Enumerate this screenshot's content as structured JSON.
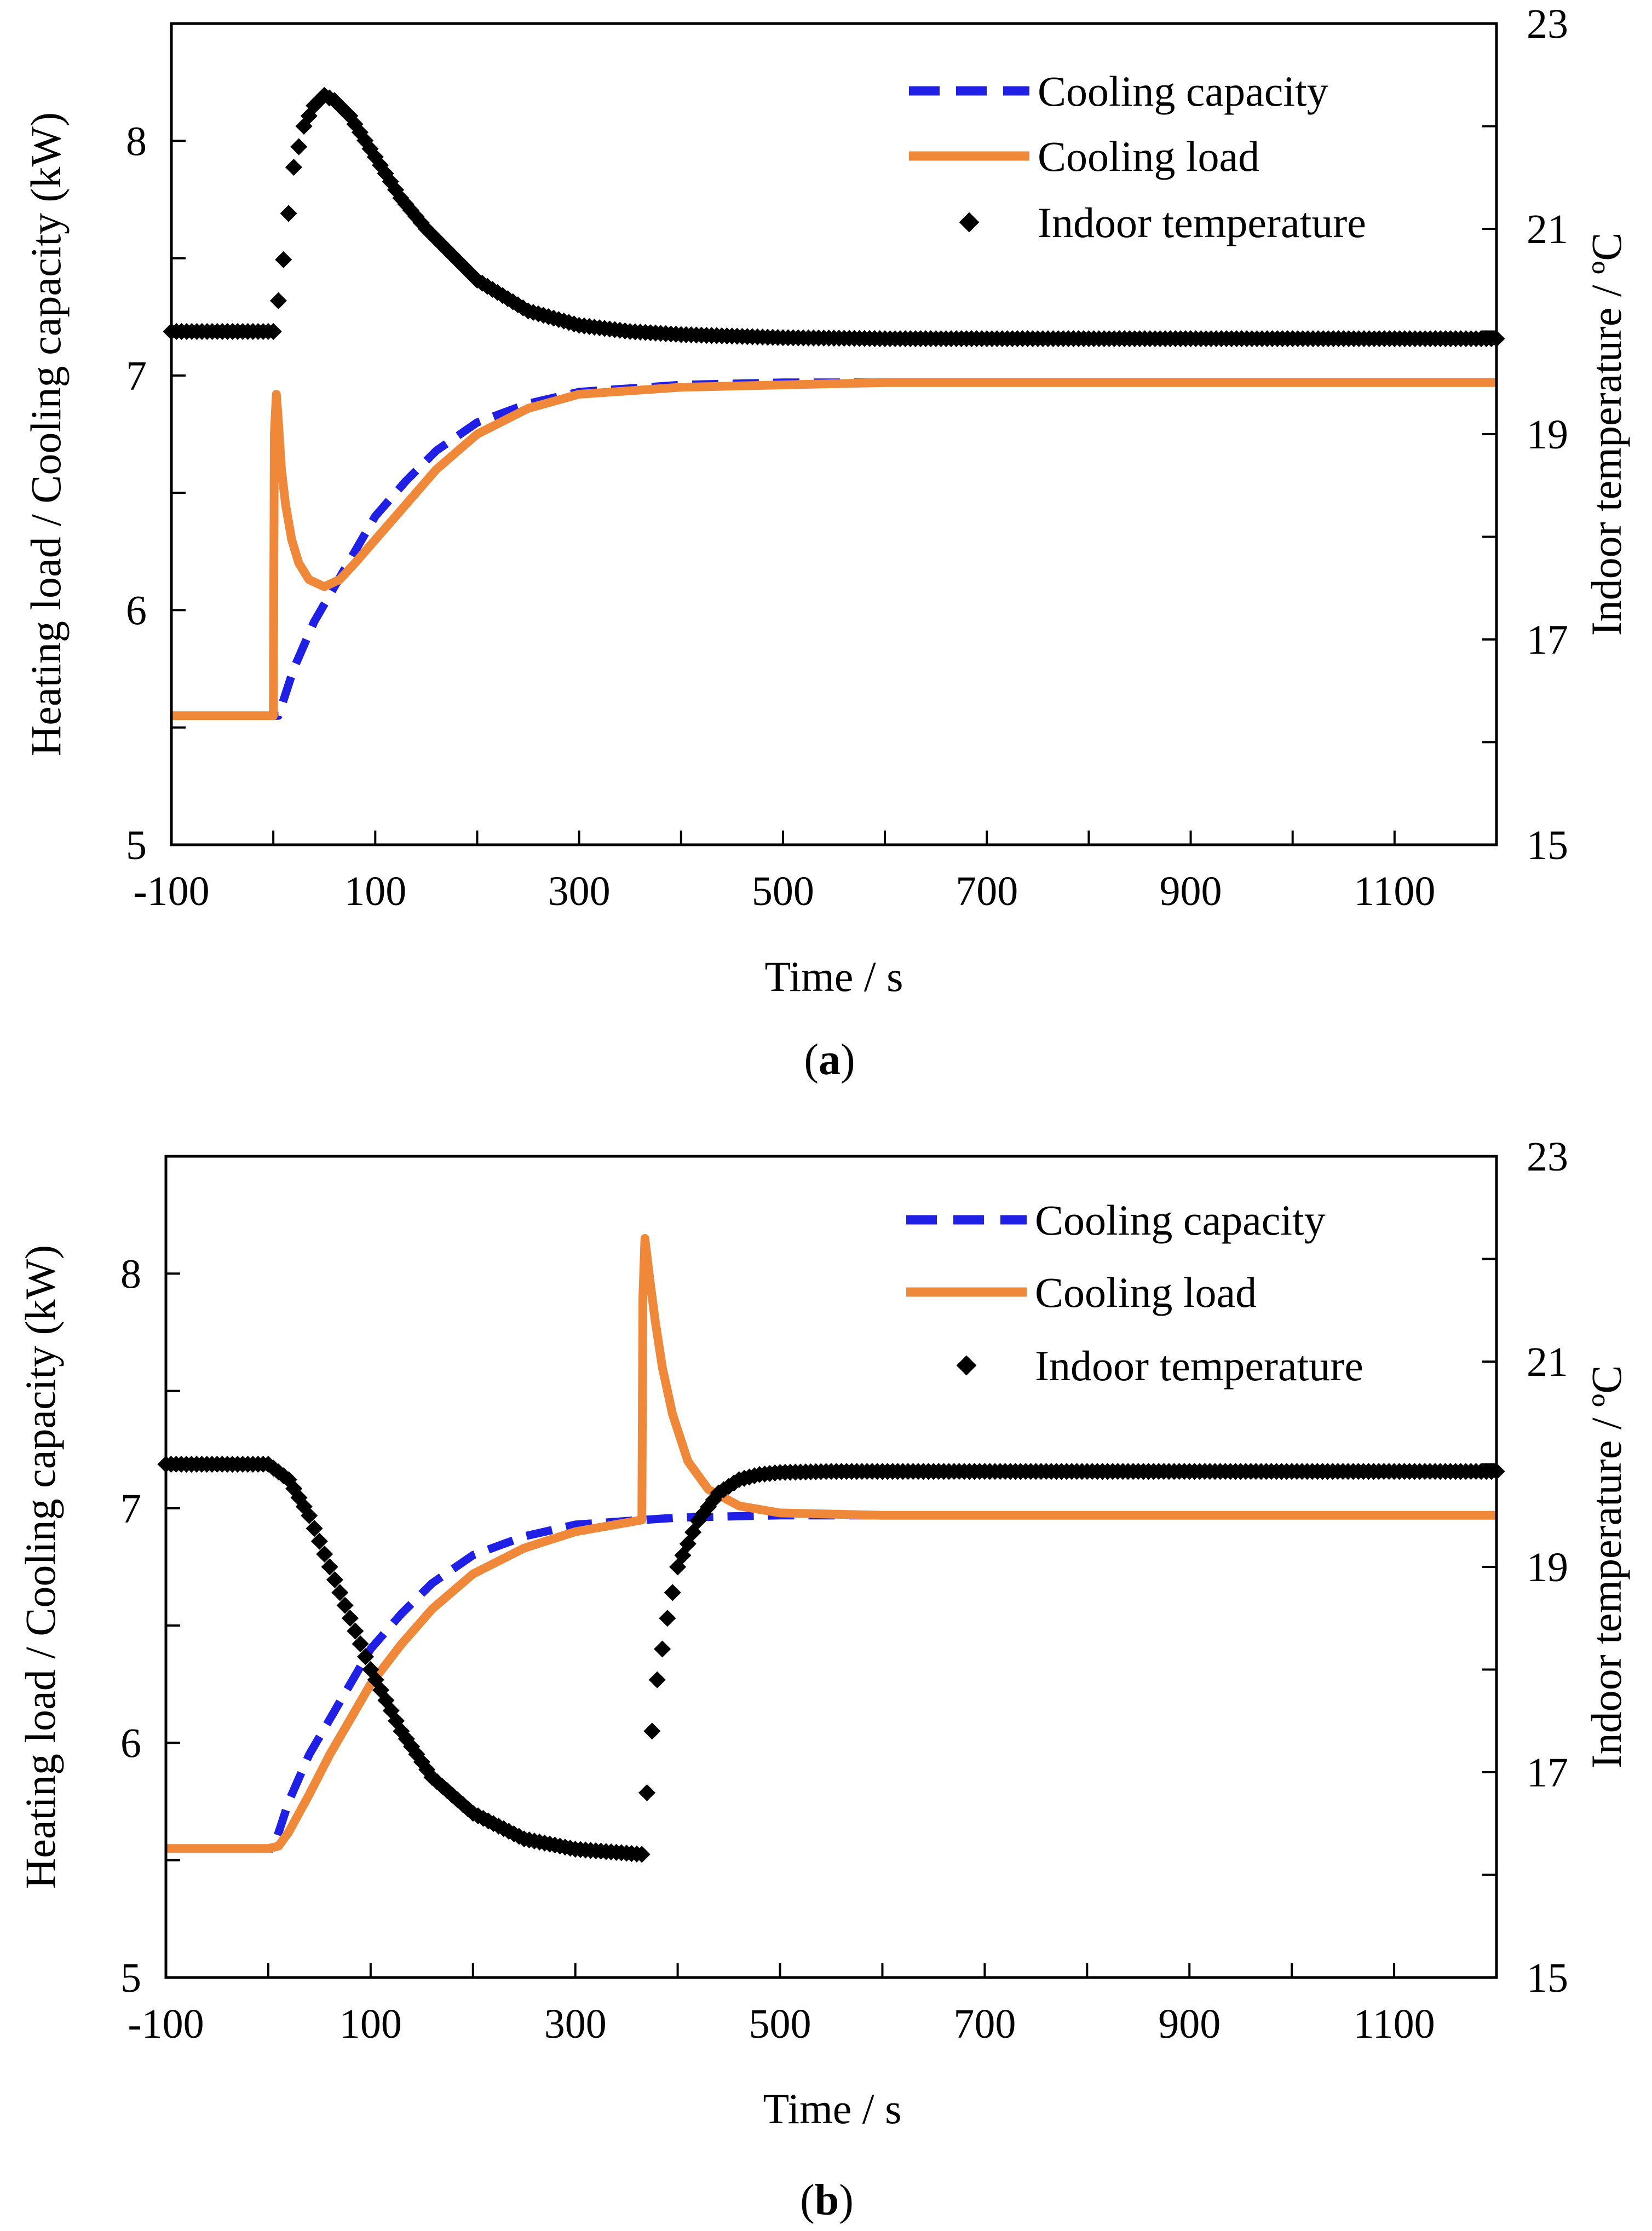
{
  "figure": {
    "colors": {
      "capacity": "#1f1fe6",
      "load": "#f0883a",
      "temperature": "#000000",
      "axis": "#000000"
    }
  },
  "chart_data": [
    {
      "type": "line",
      "panel": "a",
      "caption": {
        "open": "(",
        "letter": "a",
        "close": ")"
      },
      "xlabel": "Time / s",
      "ylabel_left": "Heating load / Cooling capacity (kW)",
      "ylabel_right": "Indoor temperature / ºC",
      "xlim": [
        -100,
        1200
      ],
      "ylim_left": [
        5,
        8.5
      ],
      "ylim_right": [
        15,
        23
      ],
      "x_ticks": [
        -100,
        100,
        300,
        500,
        700,
        900,
        1100
      ],
      "y_left_ticks": [
        5,
        6,
        7,
        8
      ],
      "y_right_ticks": [
        15,
        17,
        19,
        21,
        23
      ],
      "legend": [
        "Cooling capacity",
        "Cooling load",
        "Indoor temperature"
      ],
      "legend_position": "top-right",
      "series": [
        {
          "name": "Cooling capacity",
          "axis": "left",
          "style": "dashed",
          "x": [
            -100,
            0,
            5,
            20,
            40,
            60,
            80,
            100,
            130,
            160,
            200,
            250,
            300,
            400,
            500,
            600,
            800,
            1000,
            1200
          ],
          "y": [
            5.55,
            5.55,
            5.55,
            5.75,
            5.95,
            6.1,
            6.25,
            6.4,
            6.55,
            6.68,
            6.8,
            6.88,
            6.93,
            6.96,
            6.97,
            6.97,
            6.97,
            6.97,
            6.97
          ]
        },
        {
          "name": "Cooling load",
          "axis": "left",
          "style": "solid",
          "x": [
            -100,
            0,
            1,
            3,
            5,
            8,
            12,
            18,
            25,
            35,
            50,
            65,
            80,
            100,
            130,
            160,
            200,
            250,
            300,
            400,
            500,
            600,
            800,
            1000,
            1200
          ],
          "y": [
            5.55,
            5.55,
            6.75,
            6.92,
            6.8,
            6.6,
            6.45,
            6.3,
            6.2,
            6.13,
            6.1,
            6.13,
            6.2,
            6.3,
            6.45,
            6.6,
            6.75,
            6.86,
            6.92,
            6.95,
            6.96,
            6.97,
            6.97,
            6.97,
            6.97
          ]
        },
        {
          "name": "Indoor temperature",
          "axis": "right",
          "style": "markers",
          "x": [
            -100,
            0,
            5,
            10,
            20,
            30,
            40,
            50,
            60,
            75,
            100,
            125,
            150,
            175,
            200,
            250,
            300,
            350,
            400,
            500,
            600,
            800,
            1000,
            1200
          ],
          "y": [
            20.0,
            20.0,
            20.3,
            20.7,
            21.6,
            22.0,
            22.2,
            22.3,
            22.25,
            22.1,
            21.7,
            21.3,
            21.0,
            20.75,
            20.5,
            20.2,
            20.06,
            20.0,
            19.97,
            19.94,
            19.93,
            19.93,
            19.93,
            19.93
          ]
        }
      ]
    },
    {
      "type": "line",
      "panel": "b",
      "caption": {
        "open": "(",
        "letter": "b",
        "close": ")"
      },
      "xlabel": "Time / s",
      "ylabel_left": "Heating load / Cooling capacity (kW)",
      "ylabel_right": "Indoor temperature / ºC",
      "xlim": [
        -100,
        1200
      ],
      "ylim_left": [
        5,
        8.5
      ],
      "ylim_right": [
        15,
        23
      ],
      "x_ticks": [
        -100,
        100,
        300,
        500,
        700,
        900,
        1100
      ],
      "y_left_ticks": [
        5,
        6,
        7,
        8
      ],
      "y_right_ticks": [
        15,
        17,
        19,
        21,
        23
      ],
      "legend": [
        "Cooling capacity",
        "Cooling load",
        "Indoor temperature"
      ],
      "legend_position": "top-right",
      "series": [
        {
          "name": "Cooling capacity",
          "axis": "left",
          "style": "dashed",
          "x": [
            -100,
            0,
            5,
            20,
            40,
            60,
            80,
            100,
            130,
            160,
            200,
            250,
            300,
            365,
            400,
            500,
            600,
            800,
            1000,
            1200
          ],
          "y": [
            5.55,
            5.55,
            5.55,
            5.75,
            5.95,
            6.1,
            6.25,
            6.4,
            6.55,
            6.68,
            6.8,
            6.88,
            6.93,
            6.95,
            6.96,
            6.97,
            6.97,
            6.97,
            6.97,
            6.97
          ]
        },
        {
          "name": "Cooling load",
          "axis": "left",
          "style": "solid",
          "x": [
            -100,
            0,
            10,
            20,
            40,
            60,
            80,
            100,
            130,
            160,
            200,
            250,
            300,
            365,
            366,
            368,
            372,
            378,
            385,
            395,
            410,
            430,
            460,
            500,
            600,
            800,
            1000,
            1200
          ],
          "y": [
            5.55,
            5.55,
            5.56,
            5.62,
            5.78,
            5.95,
            6.1,
            6.25,
            6.42,
            6.57,
            6.72,
            6.83,
            6.9,
            6.95,
            7.9,
            8.15,
            8.0,
            7.8,
            7.6,
            7.4,
            7.2,
            7.08,
            7.01,
            6.98,
            6.97,
            6.97,
            6.97,
            6.97
          ]
        },
        {
          "name": "Indoor temperature",
          "axis": "right",
          "style": "markers",
          "x": [
            -100,
            0,
            20,
            40,
            60,
            80,
            100,
            130,
            160,
            200,
            250,
            300,
            365,
            370,
            375,
            380,
            390,
            400,
            420,
            440,
            460,
            480,
            500,
            550,
            600,
            800,
            1000,
            1200
          ],
          "y": [
            20.0,
            20.0,
            19.85,
            19.5,
            19.0,
            18.5,
            18.0,
            17.4,
            16.95,
            16.6,
            16.35,
            16.25,
            16.2,
            16.8,
            17.4,
            17.9,
            18.5,
            19.0,
            19.45,
            19.72,
            19.85,
            19.9,
            19.92,
            19.93,
            19.93,
            19.93,
            19.93,
            19.93
          ]
        }
      ]
    }
  ]
}
